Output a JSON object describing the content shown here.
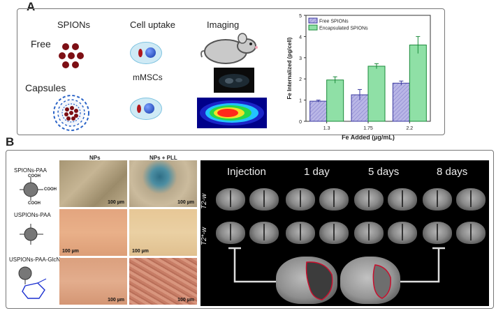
{
  "panel_a": {
    "letter": "A",
    "col_spions": "SPIONs",
    "col_uptake": "Cell uptake",
    "col_imaging": "Imaging",
    "row_free": "Free",
    "row_capsules": "Capsules",
    "cell_label": "mMSCs"
  },
  "chart_data": {
    "type": "bar",
    "categories": [
      "1.3",
      "1.75",
      "2.2"
    ],
    "series": [
      {
        "name": "Free SPIONs",
        "values": [
          0.95,
          1.25,
          1.8
        ],
        "errors": [
          0.05,
          0.25,
          0.1
        ],
        "color": "#b9b6e6"
      },
      {
        "name": "Encapsulated SPIONs",
        "values": [
          1.95,
          2.6,
          3.6
        ],
        "errors": [
          0.15,
          0.12,
          0.4
        ],
        "color": "#8fe0a6"
      }
    ],
    "title": "",
    "xlabel": "Fe Added (µg/mL)",
    "ylabel": "Fe Internalized (pg/cell)",
    "ylim": [
      0,
      5
    ],
    "yticks": [
      "0",
      "1",
      "2",
      "3",
      "4",
      "5"
    ],
    "legend_position": "top-left"
  },
  "panel_b": {
    "letter": "B",
    "col_nps": "NPs",
    "col_nps_pll": "NPs + PLL",
    "materials": [
      {
        "name": "SPIONs-PAA"
      },
      {
        "name": "USPIONs-PAA"
      },
      {
        "name": "USPIONs-PAA-GlcN"
      }
    ],
    "scale_bar": "100 µm",
    "chem_cooh": "COOH",
    "mri_columns": [
      "Injection",
      "1 day",
      "5 days",
      "8 days"
    ],
    "row_t2": "T2-w",
    "row_t2star": "T2*-w"
  },
  "colors": {
    "free_bar": "#b9b6e6",
    "encaps_bar": "#8fe0a6",
    "spion_dot": "#7d0f14",
    "capsule_dash": "#2a63c7",
    "lesion_outline": "#c8102e"
  }
}
